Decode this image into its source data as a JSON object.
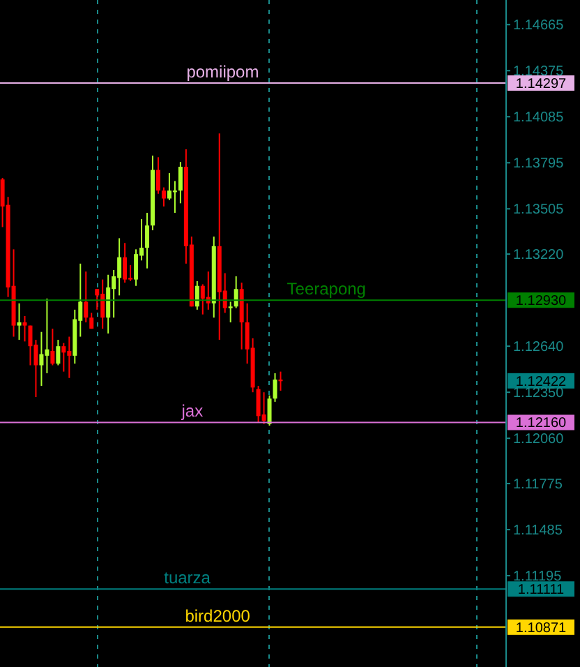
{
  "chart_data": {
    "type": "candlestick",
    "categories": [
      null,
      null,
      null,
      null,
      null,
      null,
      null,
      null,
      null,
      null,
      null,
      null,
      null,
      null,
      null,
      null,
      null,
      null,
      null,
      null,
      null,
      null,
      null,
      null,
      null,
      null,
      null,
      null,
      null,
      null,
      null,
      null,
      null,
      null,
      null,
      null,
      null,
      null,
      null,
      null,
      null,
      null,
      null,
      null,
      null,
      null,
      null,
      null,
      null,
      null,
      null,
      null,
      null,
      null,
      null,
      null,
      null,
      null,
      null,
      null,
      null,
      null,
      null,
      null,
      null,
      null,
      null,
      null,
      null,
      null,
      null,
      null,
      null,
      null,
      null,
      null,
      null,
      null,
      null,
      null,
      null,
      null,
      null,
      null,
      null,
      null,
      null,
      null,
      null,
      null,
      null
    ],
    "ohlc": [
      [
        1.1369,
        1.137,
        1.1339,
        1.1352
      ],
      [
        1.1353,
        1.1358,
        1.1295,
        1.1301
      ],
      [
        1.1302,
        1.1325,
        1.127,
        1.1277
      ],
      [
        1.1277,
        1.1291,
        1.1268,
        1.1279
      ],
      [
        1.1279,
        1.1283,
        1.1267,
        1.1277
      ],
      [
        1.1277,
        1.1277,
        1.1252,
        1.1264
      ],
      [
        1.1265,
        1.1268,
        1.1232,
        1.1252
      ],
      [
        1.1252,
        1.1273,
        1.1239,
        1.1259
      ],
      [
        1.1258,
        1.1294,
        1.1247,
        1.1262
      ],
      [
        1.1261,
        1.1275,
        1.1252,
        1.1253
      ],
      [
        1.1253,
        1.1268,
        1.1252,
        1.1264
      ],
      [
        1.1264,
        1.1266,
        1.1248,
        1.126
      ],
      [
        1.1261,
        1.127,
        1.1244,
        1.1258
      ],
      [
        1.1258,
        1.1287,
        1.1253,
        1.1281
      ],
      [
        1.128,
        1.1316,
        1.127,
        1.1292
      ],
      [
        1.1292,
        1.1311,
        1.1279,
        1.1282
      ],
      [
        1.1282,
        1.1285,
        1.1275,
        1.1275
      ],
      [
        1.13,
        1.13,
        1.1287,
        1.1296
      ],
      [
        1.1297,
        1.1306,
        1.1275,
        1.1282
      ],
      [
        1.1282,
        1.1309,
        1.1272,
        1.1301
      ],
      [
        1.13,
        1.1312,
        1.1282,
        1.1308
      ],
      [
        1.1307,
        1.1332,
        1.1296,
        1.132
      ],
      [
        1.132,
        1.1329,
        1.1304,
        1.1306
      ],
      [
        1.1307,
        1.1315,
        1.1305,
        1.1306
      ],
      [
        1.1306,
        1.1325,
        1.1302,
        1.1322
      ],
      [
        1.1321,
        1.1344,
        1.1318,
        1.1326
      ],
      [
        1.1326,
        1.1348,
        1.1313,
        1.134
      ],
      [
        1.134,
        1.1384,
        1.1337,
        1.1375
      ],
      [
        1.1375,
        1.1383,
        1.136,
        1.1362
      ],
      [
        1.1362,
        1.1364,
        1.1352,
        1.1357
      ],
      [
        1.1357,
        1.1373,
        1.1356,
        1.1362
      ],
      [
        1.1361,
        1.1368,
        1.1348,
        1.1362
      ],
      [
        1.1362,
        1.138,
        1.1354,
        1.1377
      ],
      [
        1.1377,
        1.1388,
        1.1316,
        1.1327
      ],
      [
        1.1328,
        1.1333,
        1.1289,
        1.1289
      ],
      [
        1.1289,
        1.1305,
        1.1287,
        1.1302
      ],
      [
        1.1302,
        1.1303,
        1.1284,
        1.1294
      ],
      [
        1.1295,
        1.1311,
        1.1287,
        1.1291
      ],
      [
        1.1291,
        1.1333,
        1.1282,
        1.1327
      ],
      [
        1.1327,
        1.1398,
        1.1268,
        1.1298
      ],
      [
        1.1299,
        1.131,
        1.1285,
        1.1288
      ],
      [
        1.1288,
        1.1292,
        1.1279,
        1.1289
      ],
      [
        1.1289,
        1.1308,
        1.1288,
        1.13
      ],
      [
        1.13,
        1.1304,
        1.1262,
        1.1279
      ],
      [
        1.1279,
        1.1291,
        1.1253,
        1.1262
      ],
      [
        1.1263,
        1.1269,
        1.1235,
        1.1238
      ],
      [
        1.1237,
        1.1239,
        1.1216,
        1.122
      ],
      [
        1.1221,
        1.1235,
        1.1215,
        1.1217
      ],
      [
        1.1215,
        1.1233,
        1.1214,
        1.1231
      ],
      [
        1.1231,
        1.1247,
        1.1229,
        1.1243
      ],
      [
        1.1243,
        1.1248,
        1.1236,
        1.1242
      ],
      null,
      null,
      null,
      null,
      null,
      null,
      null,
      null,
      null,
      null,
      null,
      null,
      null,
      null,
      null,
      null,
      null,
      null,
      null,
      null,
      null,
      null,
      null,
      null,
      null,
      null,
      null,
      null,
      null,
      null,
      null,
      null,
      null,
      null,
      null,
      null,
      null,
      null,
      null,
      null
    ],
    "colors": [
      "#ff0000",
      "#ff0000",
      "#ff0000",
      "#adff2f",
      "#ff0000",
      "#ff0000",
      "#ff0000",
      "#adff2f",
      "#adff2f",
      "#ff0000",
      "#adff2f",
      "#ff0000",
      "#ff0000",
      "#adff2f",
      "#adff2f",
      "#ff0000",
      "#ff0000",
      "#ff0000",
      "#ff0000",
      "#adff2f",
      "#adff2f",
      "#adff2f",
      "#ff0000",
      "#ff0000",
      "#adff2f",
      "#adff2f",
      "#adff2f",
      "#adff2f",
      "#ff0000",
      "#ff0000",
      "#adff2f",
      "#adff2f",
      "#adff2f",
      "#ff0000",
      "#ff0000",
      "#adff2f",
      "#ff0000",
      "#ff0000",
      "#adff2f",
      "#ff0000",
      "#ff0000",
      "#adff2f",
      "#adff2f",
      "#ff0000",
      "#ff0000",
      "#ff0000",
      "#ff0000",
      "#ff0000",
      "#adff2f",
      "#adff2f",
      "#ff0000",
      null,
      null,
      null,
      null,
      null,
      null,
      null,
      null,
      null,
      null,
      null,
      null,
      null,
      null,
      null,
      null,
      null,
      null,
      null,
      null,
      null,
      null,
      null,
      null,
      null,
      null,
      null,
      null,
      null,
      null,
      null,
      null,
      null,
      null,
      null,
      null,
      null,
      null,
      null,
      null
    ],
    "ylim": [
      1.1062,
      1.1482
    ],
    "yticks": [
      1.14665,
      1.14375,
      1.14085,
      1.13795,
      1.13505,
      {
        "value": 1.1322,
        "label": "1.13220"
      },
      {
        "value": 1.1264,
        "label": "1.12640"
      },
      {
        "value": 1.1235,
        "label": "1.12350"
      },
      {
        "value": 1.1206,
        "label": "1.12060"
      },
      1.11775,
      1.11485,
      1.11195
    ],
    "tick_labels": "y",
    "annotations": [
      "1.14297",
      "1.12930",
      "1.12422",
      "1.12160",
      "1.11111",
      "1.10871"
    ],
    "ref_lines": [
      {
        "axis": "y",
        "value": 1.14297,
        "label": "pomiipom",
        "color": "#e6b0e6"
      },
      {
        "axis": "y",
        "value": 1.1293,
        "label": "Teerapong",
        "color": "#008000"
      },
      {
        "axis": "y",
        "value": 1.1216,
        "label": "jax",
        "color": "#da70d6"
      },
      {
        "axis": "y",
        "value": 1.11111,
        "label": "tuarza",
        "color": "#008080"
      },
      {
        "axis": "y",
        "value": 1.10871,
        "label": "bird2000",
        "color": "#ffd700"
      }
    ]
  }
}
